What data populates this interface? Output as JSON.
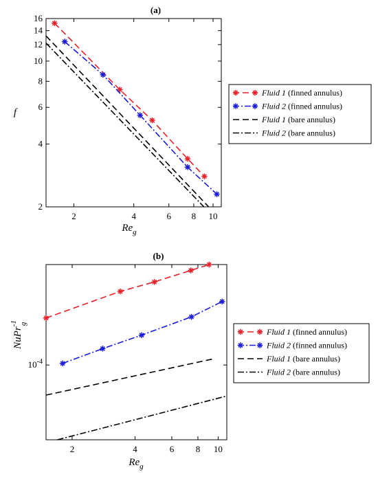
{
  "chart_data": [
    {
      "type": "line",
      "panel_label": "(a)",
      "ylabel": "f",
      "xlabel_main": "Re",
      "xlabel_sub": "g",
      "x_scale": "log",
      "y_scale": "log",
      "xlim": [
        1.45,
        11.0
      ],
      "ylim": [
        2,
        16
      ],
      "x_ticks": [
        2,
        4,
        6,
        8,
        10
      ],
      "y_ticks": [
        2,
        4,
        6,
        8,
        10,
        12,
        14,
        16
      ],
      "grid": false,
      "legend_position": "right",
      "series": [
        {
          "legend_name": "Fluid 1",
          "legend_suffix": "(finned annulus)",
          "color": "#e8202a",
          "dash": "dashed",
          "marker": "asterisk",
          "x": [
            1.6,
            3.4,
            4.95,
            7.45,
            9.05
          ],
          "y": [
            15.2,
            7.3,
            5.2,
            3.4,
            2.8
          ]
        },
        {
          "legend_name": "Fluid 2",
          "legend_suffix": "(finned annulus)",
          "color": "#1a1adb",
          "dash": "dashdot",
          "marker": "asterisk",
          "x": [
            1.8,
            2.8,
            4.3,
            7.45,
            10.45
          ],
          "y": [
            12.4,
            8.6,
            5.5,
            3.1,
            2.3
          ]
        },
        {
          "legend_name": "Fluid 1",
          "legend_suffix": "(bare annulus)",
          "color": "#000000",
          "dash": "dashed",
          "marker": "none",
          "x": [
            1.45,
            9.5
          ],
          "y": [
            13.2,
            2.0
          ]
        },
        {
          "legend_name": "Fluid 2",
          "legend_suffix": "(bare annulus)",
          "color": "#000000",
          "dash": "dashdot",
          "marker": "none",
          "x": [
            1.45,
            9.0
          ],
          "y": [
            12.2,
            2.0
          ]
        }
      ]
    },
    {
      "type": "line",
      "panel_label": "(b)",
      "ylabel_main": "NuPr",
      "ylabel_sup": "-1",
      "ylabel_sub": "g",
      "xlabel_main": "Re",
      "xlabel_sub": "g",
      "x_scale": "log",
      "y_scale": "log",
      "xlim": [
        1.5,
        11.0
      ],
      "ylim": [
        6.2e-05,
        0.00019
      ],
      "x_ticks": [
        2,
        4,
        6,
        8,
        10
      ],
      "y_ticks": [
        0.0001
      ],
      "y_tick_base": "10",
      "y_tick_exp": "-4",
      "grid": false,
      "legend_position": "right",
      "series": [
        {
          "legend_name": "Fluid 1",
          "legend_suffix": "(finned annulus)",
          "color": "#e8202a",
          "dash": "dashed",
          "marker": "asterisk",
          "x": [
            1.5,
            3.4,
            4.95,
            7.4,
            9.05
          ],
          "y": [
            0.000135,
            0.00016,
            0.00017,
            0.000183,
            0.00019
          ]
        },
        {
          "legend_name": "Fluid 2",
          "legend_suffix": "(finned annulus)",
          "color": "#1a1adb",
          "dash": "dashdot",
          "marker": "asterisk",
          "x": [
            1.8,
            2.8,
            4.3,
            7.45,
            10.45
          ],
          "y": [
            0.000101,
            0.000111,
            0.000121,
            0.000136,
            0.00015
          ]
        },
        {
          "legend_name": "Fluid 1",
          "legend_suffix": "(bare annulus)",
          "color": "#000000",
          "dash": "dashed",
          "marker": "none",
          "x": [
            1.5,
            9.5
          ],
          "y": [
            8.25e-05,
            0.000104
          ]
        },
        {
          "legend_name": "Fluid 2",
          "legend_suffix": "(bare annulus)",
          "color": "#000000",
          "dash": "dashdot",
          "marker": "none",
          "x": [
            1.7,
            11.0
          ],
          "y": [
            6.2e-05,
            8.2e-05
          ]
        }
      ]
    }
  ]
}
